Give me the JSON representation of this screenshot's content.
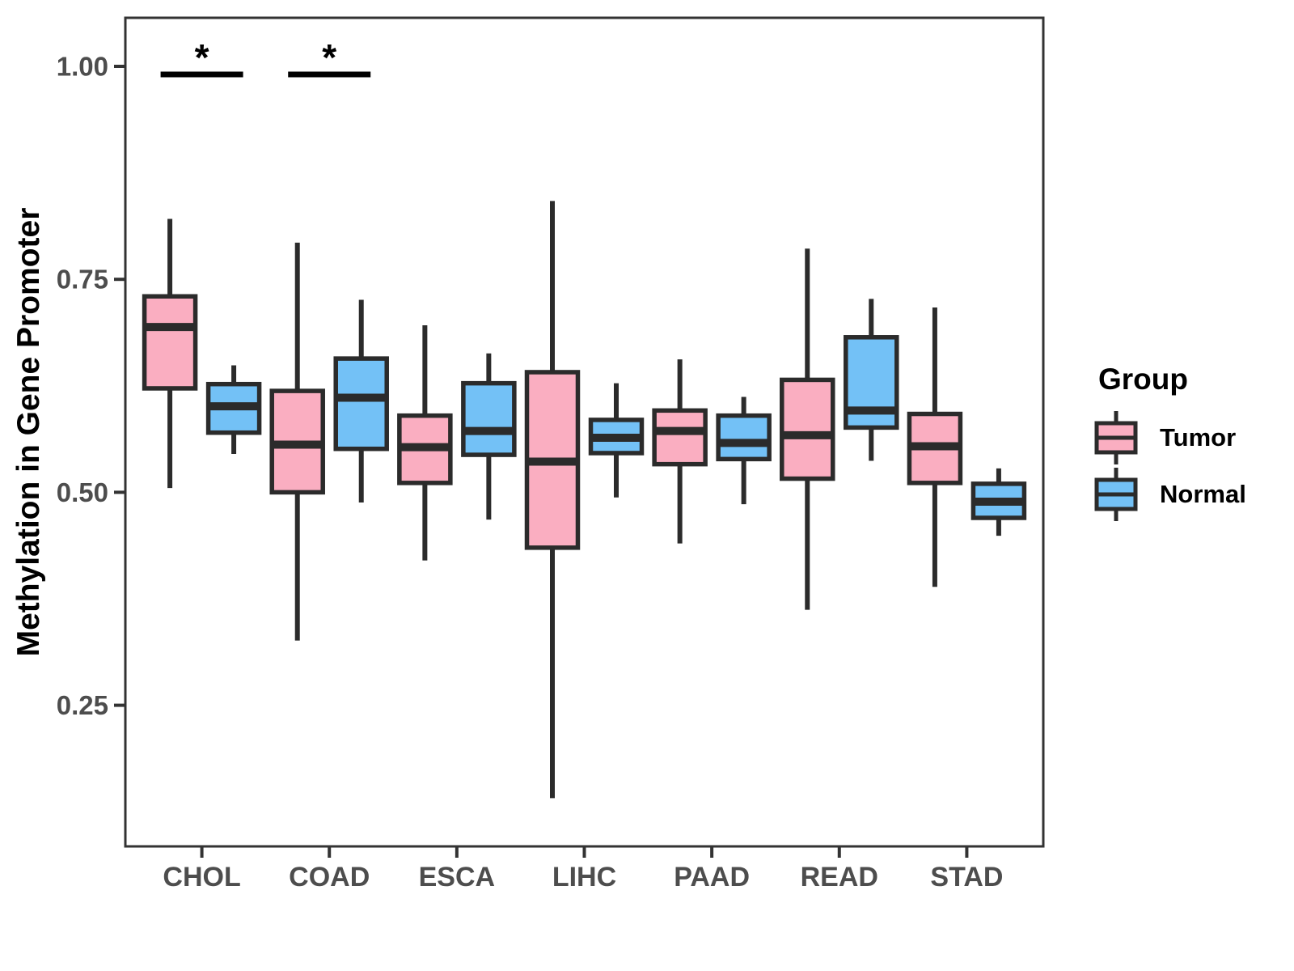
{
  "chart_data": {
    "type": "boxplot",
    "title": "",
    "xlabel": "",
    "ylabel": "Methylation in Gene Promoter",
    "legend_title": "Group",
    "legend_position": "right",
    "grid": false,
    "categories": [
      "CHOL",
      "COAD",
      "ESCA",
      "LIHC",
      "PAAD",
      "READ",
      "STAD"
    ],
    "yticks": [
      1.0,
      0.75,
      0.5,
      0.25
    ],
    "ytick_labels": [
      "1.00",
      "0.75",
      "0.50",
      "0.25"
    ],
    "ylim": [
      0.084,
      1.057
    ],
    "series": [
      {
        "name": "Tumor",
        "color": "#FAAEC1",
        "boxes": [
          {
            "whisker_low": 0.505,
            "q1": 0.622,
            "median": 0.694,
            "q3": 0.73,
            "whisker_high": 0.821
          },
          {
            "whisker_low": 0.326,
            "q1": 0.5,
            "median": 0.556,
            "q3": 0.619,
            "whisker_high": 0.793
          },
          {
            "whisker_low": 0.42,
            "q1": 0.511,
            "median": 0.553,
            "q3": 0.59,
            "whisker_high": 0.696
          },
          {
            "whisker_low": 0.141,
            "q1": 0.435,
            "median": 0.536,
            "q3": 0.641,
            "whisker_high": 0.842
          },
          {
            "whisker_low": 0.44,
            "q1": 0.533,
            "median": 0.572,
            "q3": 0.596,
            "whisker_high": 0.656
          },
          {
            "whisker_low": 0.362,
            "q1": 0.516,
            "median": 0.567,
            "q3": 0.632,
            "whisker_high": 0.786
          },
          {
            "whisker_low": 0.389,
            "q1": 0.511,
            "median": 0.554,
            "q3": 0.592,
            "whisker_high": 0.717
          }
        ]
      },
      {
        "name": "Normal",
        "color": "#73C1F6",
        "boxes": [
          {
            "whisker_low": 0.545,
            "q1": 0.57,
            "median": 0.601,
            "q3": 0.627,
            "whisker_high": 0.649
          },
          {
            "whisker_low": 0.488,
            "q1": 0.551,
            "median": 0.611,
            "q3": 0.657,
            "whisker_high": 0.726
          },
          {
            "whisker_low": 0.468,
            "q1": 0.544,
            "median": 0.572,
            "q3": 0.628,
            "whisker_high": 0.663
          },
          {
            "whisker_low": 0.494,
            "q1": 0.546,
            "median": 0.564,
            "q3": 0.585,
            "whisker_high": 0.628
          },
          {
            "whisker_low": 0.486,
            "q1": 0.539,
            "median": 0.558,
            "q3": 0.59,
            "whisker_high": 0.612
          },
          {
            "whisker_low": 0.537,
            "q1": 0.576,
            "median": 0.596,
            "q3": 0.682,
            "whisker_high": 0.727
          },
          {
            "whisker_low": 0.449,
            "q1": 0.47,
            "median": 0.489,
            "q3": 0.51,
            "whisker_high": 0.528
          }
        ]
      }
    ],
    "significance": [
      {
        "category": "CHOL",
        "symbol": "*"
      },
      {
        "category": "COAD",
        "symbol": "*"
      }
    ],
    "style": {
      "tumor_fill": "#FAAEC1",
      "normal_fill": "#73C1F6",
      "box_border": "#2B2B2B",
      "panel_border": "#333333",
      "axis_text": "#4D4D4D",
      "annotation": "#000000",
      "background": "#FFFFFF"
    }
  }
}
